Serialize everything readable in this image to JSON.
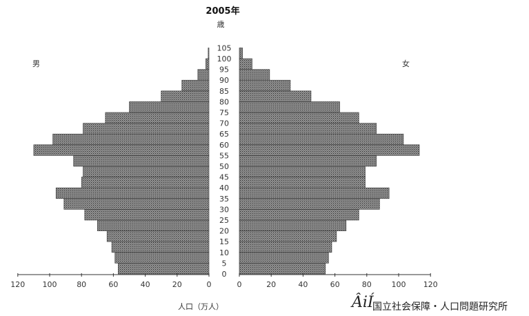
{
  "chart_data": {
    "type": "bar",
    "title": "2005年",
    "age_unit": "歳",
    "xlabel": "人口（万人）",
    "left_label": "男",
    "right_label": "女",
    "age_ticks": [
      "0",
      "5",
      "10",
      "15",
      "20",
      "25",
      "30",
      "35",
      "40",
      "45",
      "50",
      "55",
      "60",
      "65",
      "70",
      "75",
      "80",
      "85",
      "90",
      "95",
      "100",
      "105"
    ],
    "male_ticks": [
      "120",
      "100",
      "80",
      "60",
      "40",
      "20",
      "0"
    ],
    "female_ticks": [
      "0",
      "20",
      "40",
      "60",
      "80",
      "100",
      "120"
    ],
    "xlim": [
      0,
      120
    ],
    "ages": [
      0,
      5,
      10,
      15,
      20,
      25,
      30,
      35,
      40,
      45,
      50,
      55,
      60,
      65,
      70,
      75,
      80,
      85,
      90,
      95,
      100
    ],
    "series": [
      {
        "name": "男",
        "values": [
          57,
          59,
          61,
          64,
          70,
          78,
          91,
          96,
          80,
          79,
          85,
          110,
          98,
          79,
          65,
          50,
          30,
          17,
          7,
          2,
          0.5
        ]
      },
      {
        "name": "女",
        "values": [
          54,
          56,
          58,
          61,
          67,
          75,
          88,
          94,
          79,
          79,
          86,
          113,
          103,
          86,
          75,
          63,
          45,
          32,
          19,
          8,
          2
        ]
      }
    ]
  },
  "logo": {
    "mark": "ÂiÍ",
    "text": "国立社会保障・人口問題研究所"
  }
}
